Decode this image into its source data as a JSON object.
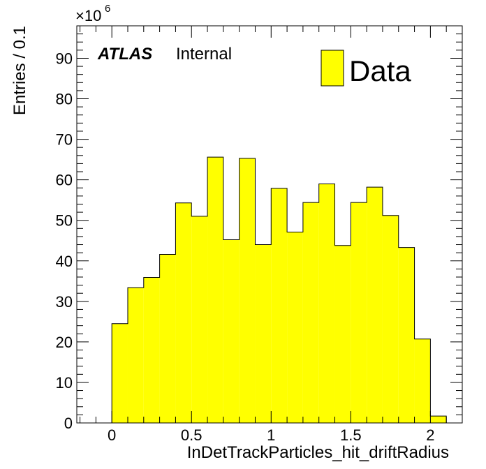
{
  "chart_data": {
    "type": "bar",
    "histogram": true,
    "bin_edges": [
      0,
      0.1,
      0.2,
      0.3,
      0.4,
      0.5,
      0.6,
      0.7,
      0.8,
      0.9,
      1.0,
      1.1,
      1.2,
      1.3,
      1.4,
      1.5,
      1.6,
      1.7,
      1.8,
      1.9,
      2.0,
      2.1
    ],
    "values": [
      24.5,
      33.4,
      35.9,
      41.6,
      54.3,
      51.0,
      65.6,
      45.2,
      65.3,
      44.0,
      57.9,
      47.1,
      54.4,
      59.0,
      43.8,
      54.4,
      58.2,
      51.2,
      43.3,
      20.7,
      1.7
    ],
    "series": [
      {
        "name": "Data",
        "color": "#ffff00"
      }
    ],
    "xlabel": "InDetTrackParticles_hit_driftRadius",
    "ylabel": "Entries / 0.1",
    "y_multiplier": "×10",
    "y_multiplier_exp": "6",
    "xlim": [
      -0.22,
      2.2
    ],
    "ylim": [
      0,
      98
    ],
    "x_ticks": [
      0,
      0.5,
      1,
      1.5,
      2
    ],
    "x_tick_labels": [
      "0",
      "0.5",
      "1",
      "1.5",
      "2"
    ],
    "y_ticks": [
      0,
      10,
      20,
      30,
      40,
      50,
      60,
      70,
      80,
      90
    ],
    "y_tick_labels": [
      "0",
      "10",
      "20",
      "30",
      "40",
      "50",
      "60",
      "70",
      "80",
      "90"
    ],
    "grid": false,
    "legend_position": "top-right"
  },
  "annotation": {
    "atlas": "ATLAS",
    "status": "Internal"
  }
}
